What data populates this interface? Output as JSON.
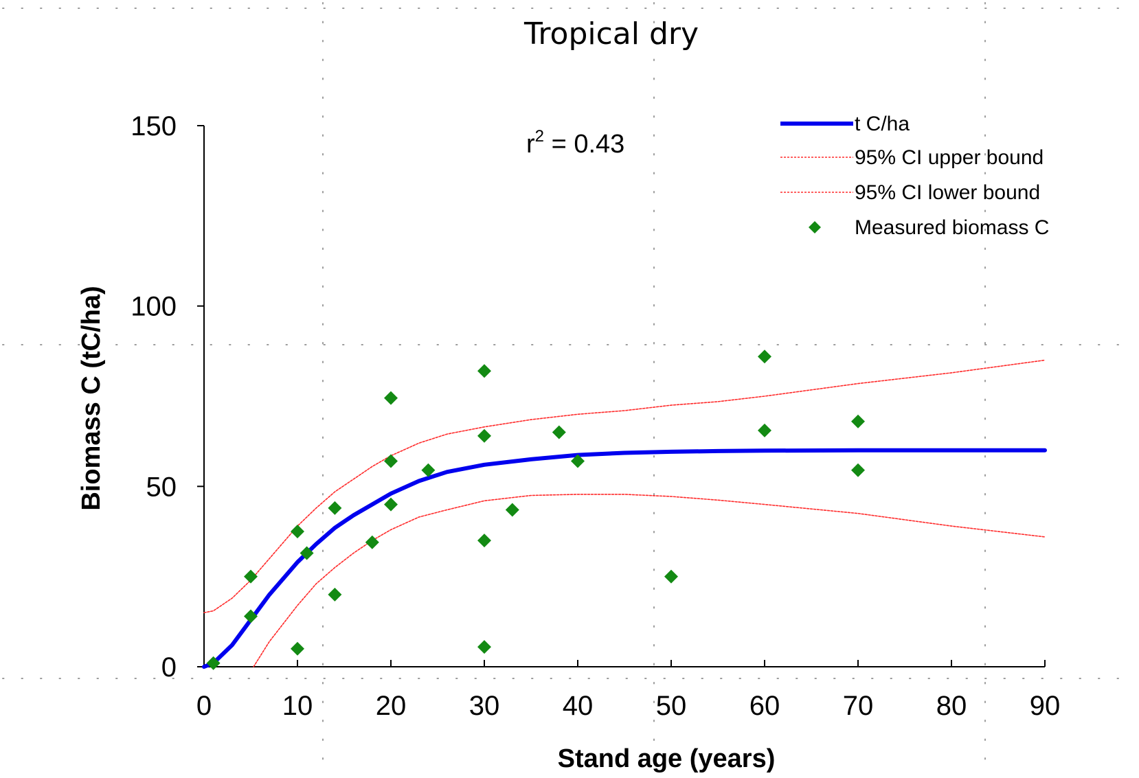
{
  "chart_data": {
    "type": "line",
    "title": "Tropical dry",
    "xlabel": "Stand age (years)",
    "ylabel": "Biomass C (tC/ha)",
    "xlim": [
      0,
      90
    ],
    "ylim": [
      0,
      150
    ],
    "xticks": [
      "0",
      "10",
      "20",
      "30",
      "40",
      "50",
      "60",
      "70",
      "80",
      "90"
    ],
    "yticks": [
      "0",
      "50",
      "100",
      "150"
    ],
    "annotation": {
      "r": "r",
      "exp": "2",
      "rest": " = 0.43"
    },
    "legend_position": "top-right",
    "colors": {
      "fit": "#0000ee",
      "ci": "#ff2a2a",
      "points": "#138a13"
    },
    "series": [
      {
        "name": "t C/ha",
        "style": "solid-thick",
        "x": [
          0,
          1,
          3,
          5,
          7,
          10,
          12,
          14,
          16,
          18,
          20,
          23,
          26,
          30,
          35,
          40,
          45,
          50,
          55,
          60,
          70,
          80,
          90
        ],
        "y": [
          0,
          1,
          6,
          13,
          20,
          29,
          34,
          38.5,
          42,
          45,
          48,
          51.5,
          54,
          56,
          57.5,
          58.7,
          59.3,
          59.6,
          59.8,
          59.9,
          60,
          60,
          60
        ]
      },
      {
        "name": "95% CI upper bound",
        "style": "dashed-thin",
        "x": [
          0,
          1,
          3,
          5,
          7,
          10,
          12,
          14,
          16,
          18,
          20,
          23,
          26,
          30,
          35,
          40,
          45,
          50,
          55,
          60,
          70,
          80,
          90
        ],
        "y": [
          15,
          15.5,
          19,
          24,
          30,
          39,
          44,
          48.5,
          52,
          55.5,
          58.5,
          62,
          64.5,
          66.5,
          68.5,
          70,
          71,
          72.5,
          73.5,
          75,
          78.5,
          81.5,
          85
        ]
      },
      {
        "name": "95% CI lower bound",
        "style": "dashed-thin",
        "x": [
          5.3,
          7,
          10,
          12,
          14,
          16,
          18,
          20,
          23,
          26,
          30,
          35,
          40,
          45,
          50,
          55,
          60,
          70,
          80,
          90
        ],
        "y": [
          0,
          7,
          17,
          23,
          27.5,
          31.5,
          35,
          38,
          41.5,
          43.5,
          46,
          47.5,
          47.8,
          47.8,
          47.2,
          46.2,
          45,
          42.5,
          39,
          36
        ]
      },
      {
        "name": "Measured biomass C",
        "style": "marker-diamond",
        "x": [
          1,
          5,
          5,
          10,
          10,
          11,
          14,
          14,
          18,
          20,
          20,
          20,
          24,
          30,
          30,
          30,
          30,
          33,
          38,
          40,
          50,
          60,
          60,
          70,
          70
        ],
        "y": [
          1,
          25,
          14,
          37.5,
          5,
          31.5,
          44,
          20,
          34.5,
          74.5,
          57,
          45,
          54.5,
          82,
          64,
          35,
          5.5,
          43.5,
          65,
          57,
          25,
          86,
          65.5,
          68,
          54.5
        ]
      }
    ]
  }
}
